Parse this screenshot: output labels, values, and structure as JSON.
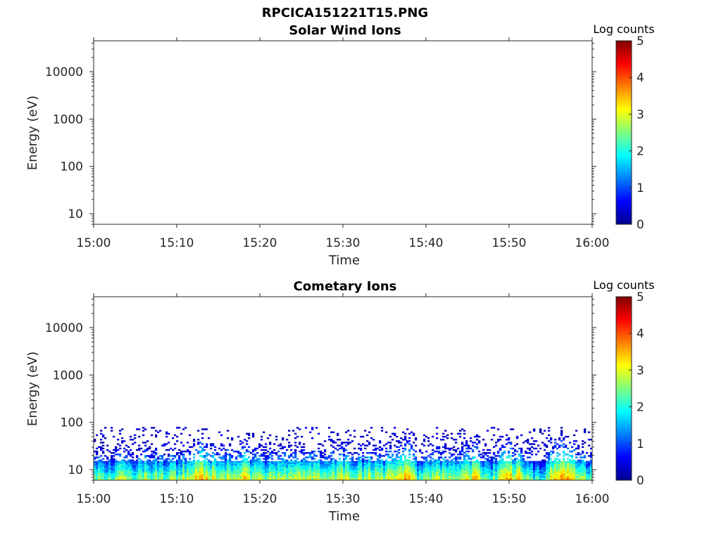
{
  "figure_title": "RPCICA151221T15.PNG",
  "colors": {
    "colormap": [
      "#00008f",
      "#0000ff",
      "#00ffff",
      "#ffff00",
      "#ff0000",
      "#800000"
    ],
    "axis": "#262626"
  },
  "chart_data": [
    {
      "type": "heatmap",
      "title": "Solar Wind Ions",
      "xlabel": "Time",
      "ylabel": "Energy (eV)",
      "x_ticks": [
        "15:00",
        "15:10",
        "15:20",
        "15:30",
        "15:40",
        "15:50",
        "16:00"
      ],
      "x_range_minutes": [
        0,
        60
      ],
      "y_ticks": [
        "10",
        "100",
        "1000",
        "10000"
      ],
      "y_scale": "log",
      "ylim": [
        6,
        45000
      ],
      "colorbar": {
        "label": "Log counts",
        "ticks": [
          "0",
          "1",
          "2",
          "3",
          "4",
          "5"
        ],
        "range": [
          0,
          5
        ]
      },
      "data_energy_range_eV": null,
      "peak_log_counts": null,
      "note": "no counts"
    },
    {
      "type": "heatmap",
      "title": "Cometary Ions",
      "xlabel": "Time",
      "ylabel": "Energy (eV)",
      "x_ticks": [
        "15:00",
        "15:10",
        "15:20",
        "15:30",
        "15:40",
        "15:50",
        "16:00"
      ],
      "x_range_minutes": [
        0,
        60
      ],
      "y_ticks": [
        "10",
        "100",
        "1000",
        "10000"
      ],
      "y_scale": "log",
      "ylim": [
        6,
        45000
      ],
      "colorbar": {
        "label": "Log counts",
        "ticks": [
          "0",
          "1",
          "2",
          "3",
          "4",
          "5"
        ],
        "range": [
          0,
          5
        ]
      },
      "data_energy_range_eV": [
        6,
        80
      ],
      "peak_log_counts": 3.7,
      "intensity_profile": [
        {
          "t": 0,
          "v": 2.4
        },
        {
          "t": 1,
          "v": 2.6
        },
        {
          "t": 2,
          "v": 2.3
        },
        {
          "t": 3,
          "v": 2.9
        },
        {
          "t": 4,
          "v": 2.7
        },
        {
          "t": 5,
          "v": 2.5
        },
        {
          "t": 6,
          "v": 2.8
        },
        {
          "t": 7,
          "v": 2.6
        },
        {
          "t": 8,
          "v": 2.4
        },
        {
          "t": 9,
          "v": 2.6
        },
        {
          "t": 10,
          "v": 2.5
        },
        {
          "t": 11,
          "v": 2.9
        },
        {
          "t": 12,
          "v": 3.3
        },
        {
          "t": 13,
          "v": 3.4
        },
        {
          "t": 14,
          "v": 3.0
        },
        {
          "t": 15,
          "v": 2.7
        },
        {
          "t": 16,
          "v": 2.9
        },
        {
          "t": 17,
          "v": 3.1
        },
        {
          "t": 18,
          "v": 3.2
        },
        {
          "t": 19,
          "v": 2.8
        },
        {
          "t": 20,
          "v": 2.6
        },
        {
          "t": 21,
          "v": 2.7
        },
        {
          "t": 22,
          "v": 2.9
        },
        {
          "t": 23,
          "v": 2.7
        },
        {
          "t": 24,
          "v": 2.6
        },
        {
          "t": 25,
          "v": 2.9
        },
        {
          "t": 26,
          "v": 3.0
        },
        {
          "t": 27,
          "v": 2.8
        },
        {
          "t": 28,
          "v": 2.6
        },
        {
          "t": 29,
          "v": 2.8
        },
        {
          "t": 30,
          "v": 3.0
        },
        {
          "t": 31,
          "v": 2.8
        },
        {
          "t": 32,
          "v": 2.6
        },
        {
          "t": 33,
          "v": 2.9
        },
        {
          "t": 34,
          "v": 2.7
        },
        {
          "t": 35,
          "v": 2.6
        },
        {
          "t": 36,
          "v": 3.4
        },
        {
          "t": 37,
          "v": 3.6
        },
        {
          "t": 38,
          "v": 3.3
        },
        {
          "t": 39,
          "v": 2.2
        },
        {
          "t": 40,
          "v": 2.4
        },
        {
          "t": 41,
          "v": 2.6
        },
        {
          "t": 42,
          "v": 2.8
        },
        {
          "t": 43,
          "v": 3.0
        },
        {
          "t": 44,
          "v": 2.7
        },
        {
          "t": 45,
          "v": 3.1
        },
        {
          "t": 46,
          "v": 3.3
        },
        {
          "t": 47,
          "v": 2.6
        },
        {
          "t": 48,
          "v": 2.4
        },
        {
          "t": 49,
          "v": 3.1
        },
        {
          "t": 50,
          "v": 3.3
        },
        {
          "t": 51,
          "v": 3.2
        },
        {
          "t": 52,
          "v": 2.6
        },
        {
          "t": 53,
          "v": 2.1
        },
        {
          "t": 54,
          "v": 2.2
        },
        {
          "t": 55,
          "v": 3.2
        },
        {
          "t": 56,
          "v": 3.5
        },
        {
          "t": 57,
          "v": 3.4
        },
        {
          "t": 58,
          "v": 2.8
        },
        {
          "t": 59,
          "v": 2.6
        },
        {
          "t": 60,
          "v": 2.5
        }
      ]
    }
  ]
}
